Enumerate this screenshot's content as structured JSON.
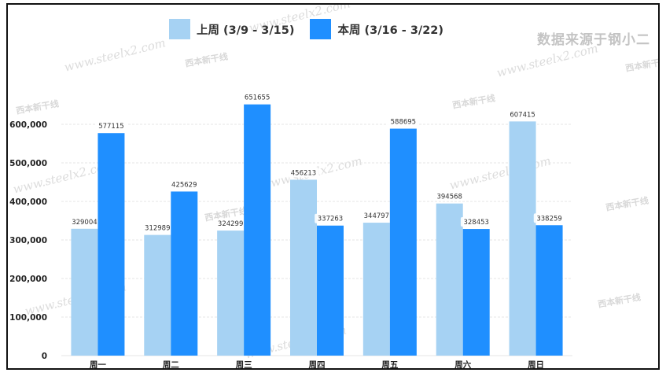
{
  "source_text": "数据来源于钢小二",
  "watermark": {
    "url": "www.steelx2.com",
    "logo": "西本新干线"
  },
  "colors": {
    "previous_week": "#A6D2F3",
    "current_week": "#1F8FFF"
  },
  "chart_data": {
    "type": "bar",
    "categories": [
      "周一",
      "周二",
      "周三",
      "周四",
      "周五",
      "周六",
      "周日"
    ],
    "series": [
      {
        "name": "上周 (3/9 - 3/15)",
        "values": [
          329004,
          312989,
          324299,
          456213,
          344797,
          394568,
          607415
        ]
      },
      {
        "name": "本周 (3/16 - 3/22)",
        "values": [
          577115,
          425629,
          651655,
          337263,
          588695,
          328453,
          338259
        ]
      }
    ],
    "yticks": [
      "0",
      "100,000",
      "200,000",
      "300,000",
      "400,000",
      "500,000",
      "600,000"
    ],
    "ylim": [
      0,
      700000
    ],
    "grid": true,
    "legend": "top"
  }
}
